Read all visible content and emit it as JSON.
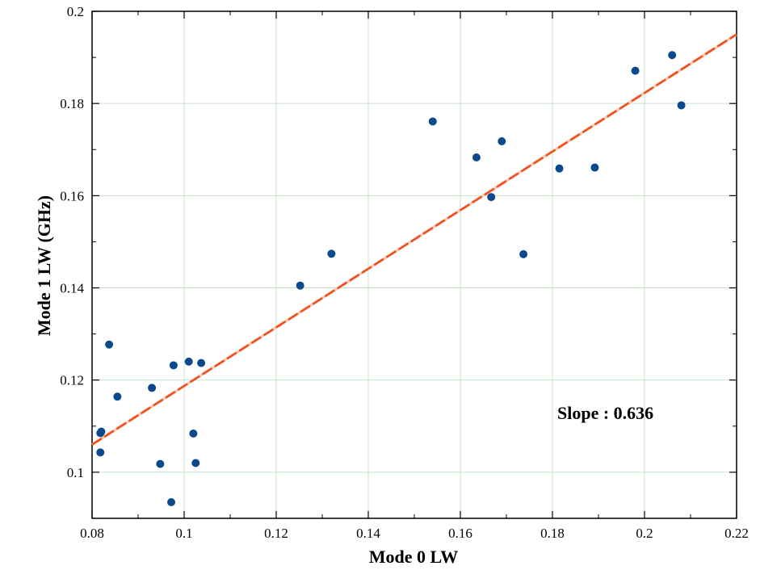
{
  "chart_data": {
    "type": "scatter",
    "title": "",
    "xlabel": "Mode 0 LW",
    "ylabel": "Mode 1 LW (GHz)",
    "xlim": [
      0.08,
      0.22
    ],
    "ylim": [
      0.09,
      0.2
    ],
    "x_ticks": [
      "0.08",
      "0.1",
      "0.12",
      "0.14",
      "0.16",
      "0.18",
      "0.2",
      "0.22"
    ],
    "y_ticks": [
      "0.1",
      "0.12",
      "0.14",
      "0.16",
      "0.18",
      "0.2"
    ],
    "grid": true,
    "annotation": "Slope : 0.636",
    "colors": {
      "points": "#0a4a8c",
      "fit_line": "#f0501e",
      "grid": "#c8e0c8"
    },
    "series": [
      {
        "points": [
          {
            "x": 0.0818,
            "y": 0.1043
          },
          {
            "x": 0.0818,
            "y": 0.1085
          },
          {
            "x": 0.082,
            "y": 0.1088
          },
          {
            "x": 0.0837,
            "y": 0.1277
          },
          {
            "x": 0.0855,
            "y": 0.1164
          },
          {
            "x": 0.093,
            "y": 0.1183
          },
          {
            "x": 0.0948,
            "y": 0.1018
          },
          {
            "x": 0.0972,
            "y": 0.0935
          },
          {
            "x": 0.0977,
            "y": 0.1232
          },
          {
            "x": 0.101,
            "y": 0.124
          },
          {
            "x": 0.102,
            "y": 0.1084
          },
          {
            "x": 0.1025,
            "y": 0.102
          },
          {
            "x": 0.1037,
            "y": 0.1237
          },
          {
            "x": 0.1252,
            "y": 0.1405
          },
          {
            "x": 0.132,
            "y": 0.1474
          },
          {
            "x": 0.154,
            "y": 0.1761
          },
          {
            "x": 0.1635,
            "y": 0.1683
          },
          {
            "x": 0.1667,
            "y": 0.1597
          },
          {
            "x": 0.169,
            "y": 0.1718
          },
          {
            "x": 0.1737,
            "y": 0.1473
          },
          {
            "x": 0.1815,
            "y": 0.1659
          },
          {
            "x": 0.1892,
            "y": 0.1661
          },
          {
            "x": 0.198,
            "y": 0.1871
          },
          {
            "x": 0.206,
            "y": 0.1905
          },
          {
            "x": 0.208,
            "y": 0.1796
          }
        ]
      }
    ],
    "fit_line": {
      "x": [
        0.08,
        0.22
      ],
      "y": [
        0.106,
        0.195
      ]
    }
  }
}
